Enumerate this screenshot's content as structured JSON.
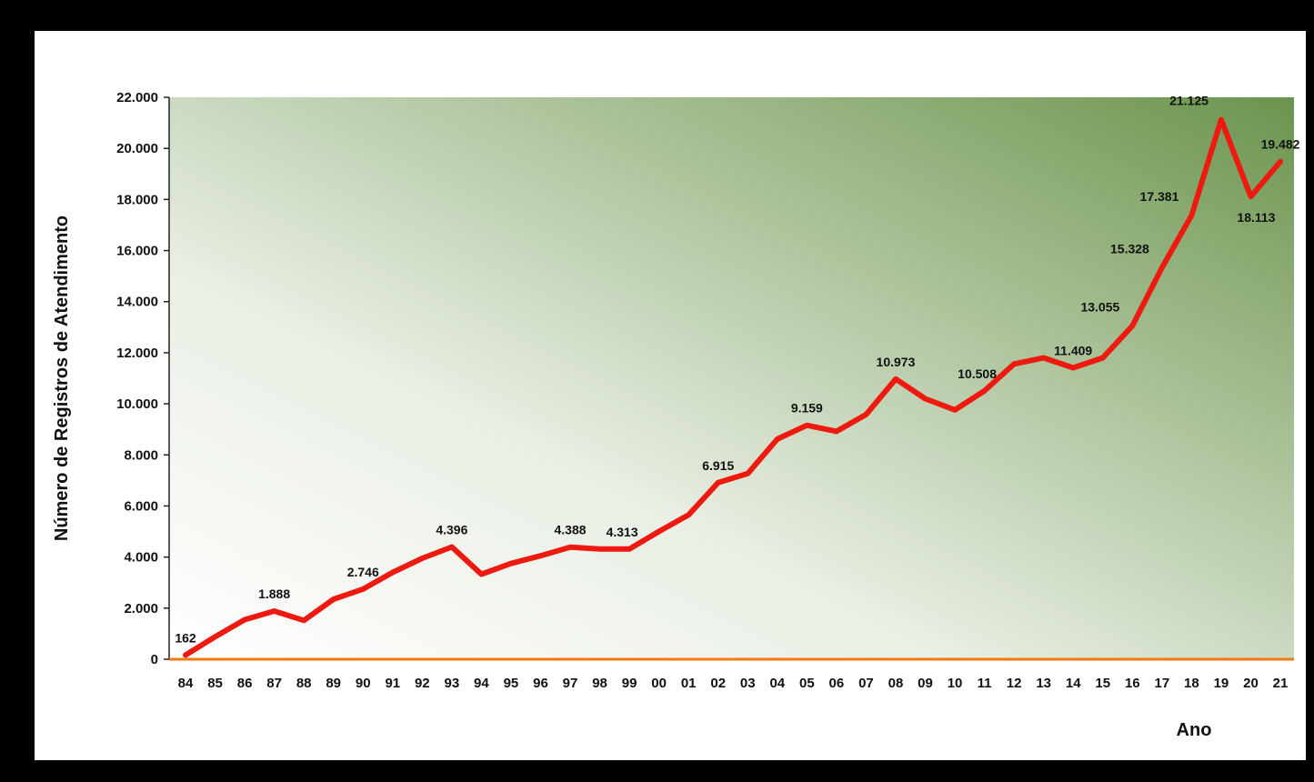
{
  "chart_data": {
    "type": "line",
    "title": "",
    "xlabel": "Ano",
    "ylabel": "Número de Registros de Atendimento",
    "ylim": [
      0,
      22000
    ],
    "ytick_step": 2000,
    "grid": false,
    "legend": "none",
    "categories": [
      "84",
      "85",
      "86",
      "87",
      "88",
      "89",
      "90",
      "91",
      "92",
      "93",
      "94",
      "95",
      "96",
      "97",
      "98",
      "99",
      "00",
      "01",
      "02",
      "03",
      "04",
      "05",
      "06",
      "07",
      "08",
      "09",
      "10",
      "11",
      "12",
      "13",
      "14",
      "15",
      "16",
      "17",
      "18",
      "19",
      "20",
      "21"
    ],
    "series": [
      {
        "values": [
          162,
          880,
          1550,
          1888,
          1520,
          2350,
          2746,
          3400,
          3950,
          4396,
          3330,
          3750,
          4050,
          4388,
          4313,
          4313,
          5000,
          5650,
          6915,
          7270,
          8620,
          9159,
          8920,
          9580,
          10973,
          10200,
          9760,
          10508,
          11560,
          11800,
          11409,
          11800,
          13055,
          15328,
          17381,
          21125,
          18113,
          19482
        ],
        "color": "#ee1a10"
      }
    ],
    "data_labels": [
      {
        "index": 0,
        "text": "162",
        "pos": "above"
      },
      {
        "index": 3,
        "text": "1.888",
        "pos": "above"
      },
      {
        "index": 6,
        "text": "2.746",
        "pos": "above"
      },
      {
        "index": 9,
        "text": "4.396",
        "pos": "above"
      },
      {
        "index": 13,
        "text": "4.388",
        "pos": "above"
      },
      {
        "index": 15,
        "text": "4.313",
        "pos": "above-left"
      },
      {
        "index": 18,
        "text": "6.915",
        "pos": "above"
      },
      {
        "index": 21,
        "text": "9.159",
        "pos": "above"
      },
      {
        "index": 24,
        "text": "10.973",
        "pos": "above"
      },
      {
        "index": 27,
        "text": "10.508",
        "pos": "above-left"
      },
      {
        "index": 30,
        "text": "11.409",
        "pos": "above"
      },
      {
        "index": 32,
        "text": "13.055",
        "pos": "left"
      },
      {
        "index": 33,
        "text": "15.328",
        "pos": "left"
      },
      {
        "index": 34,
        "text": "17.381",
        "pos": "left"
      },
      {
        "index": 35,
        "text": "21.125",
        "pos": "left"
      },
      {
        "index": 36,
        "text": "18.113",
        "pos": "below"
      },
      {
        "index": 37,
        "text": "19.482",
        "pos": "above"
      }
    ],
    "colors": {
      "plot_gradient_light": "#ffffff",
      "plot_gradient_dark": "#6b944d",
      "x_axis_line": "#f07a10",
      "y_axis_line": "#222222",
      "line": "#ee1a10"
    }
  }
}
